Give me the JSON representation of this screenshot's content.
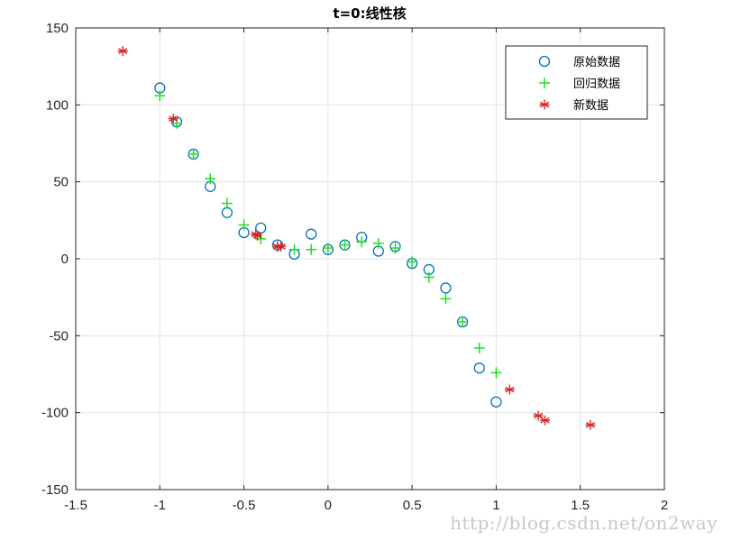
{
  "chart_data": {
    "type": "scatter",
    "title": "t=0:线性核",
    "xlabel": "",
    "ylabel": "",
    "xlim": [
      -1.5,
      2
    ],
    "ylim": [
      -150,
      150
    ],
    "xticks": [
      -1.5,
      -1,
      -0.5,
      0,
      0.5,
      1,
      1.5,
      2
    ],
    "yticks": [
      -150,
      -100,
      -50,
      0,
      50,
      100,
      150
    ],
    "xtick_labels": [
      "-1.5",
      "-1",
      "-0.5",
      "0",
      "0.5",
      "1",
      "1.5",
      "2"
    ],
    "ytick_labels": [
      "-150",
      "-100",
      "-50",
      "0",
      "50",
      "100",
      "150"
    ],
    "grid": true,
    "legend_position": "top-right",
    "series": [
      {
        "name": "原始数据",
        "marker": "circle",
        "color": "#0072bd",
        "points": [
          [
            -1,
            111
          ],
          [
            -0.9,
            89
          ],
          [
            -0.8,
            68
          ],
          [
            -0.7,
            47
          ],
          [
            -0.6,
            30
          ],
          [
            -0.5,
            17
          ],
          [
            -0.4,
            20
          ],
          [
            -0.3,
            9
          ],
          [
            -0.2,
            3
          ],
          [
            -0.1,
            16
          ],
          [
            0,
            6
          ],
          [
            0.1,
            9
          ],
          [
            0.2,
            14
          ],
          [
            0.3,
            5
          ],
          [
            0.4,
            8
          ],
          [
            0.5,
            -3
          ],
          [
            0.6,
            -7
          ],
          [
            0.7,
            -19
          ],
          [
            0.8,
            -41
          ],
          [
            0.9,
            -71
          ],
          [
            1.0,
            -93
          ]
        ]
      },
      {
        "name": "回归数据",
        "marker": "plus",
        "color": "#22dd22",
        "points": [
          [
            -1,
            106
          ],
          [
            -0.9,
            88
          ],
          [
            -0.8,
            68
          ],
          [
            -0.7,
            52
          ],
          [
            -0.6,
            36
          ],
          [
            -0.5,
            22
          ],
          [
            -0.4,
            13
          ],
          [
            -0.3,
            8
          ],
          [
            -0.2,
            6
          ],
          [
            -0.1,
            6
          ],
          [
            0,
            7
          ],
          [
            0.1,
            9
          ],
          [
            0.2,
            11
          ],
          [
            0.3,
            10
          ],
          [
            0.4,
            7
          ],
          [
            0.5,
            -2
          ],
          [
            0.6,
            -12
          ],
          [
            0.7,
            -26
          ],
          [
            0.8,
            -41
          ],
          [
            0.9,
            -58
          ],
          [
            1.0,
            -74
          ]
        ]
      },
      {
        "name": "新数据",
        "marker": "asterisk",
        "color": "#d62728",
        "points": [
          [
            -1.22,
            135
          ],
          [
            -0.92,
            91
          ],
          [
            -0.43,
            16
          ],
          [
            -0.42,
            15
          ],
          [
            -0.3,
            8
          ],
          [
            -0.28,
            8
          ],
          [
            1.08,
            -85
          ],
          [
            1.25,
            -102
          ],
          [
            1.29,
            -105
          ],
          [
            1.56,
            -108
          ]
        ]
      }
    ]
  },
  "watermark": "http://blog.csdn.net/on2way"
}
